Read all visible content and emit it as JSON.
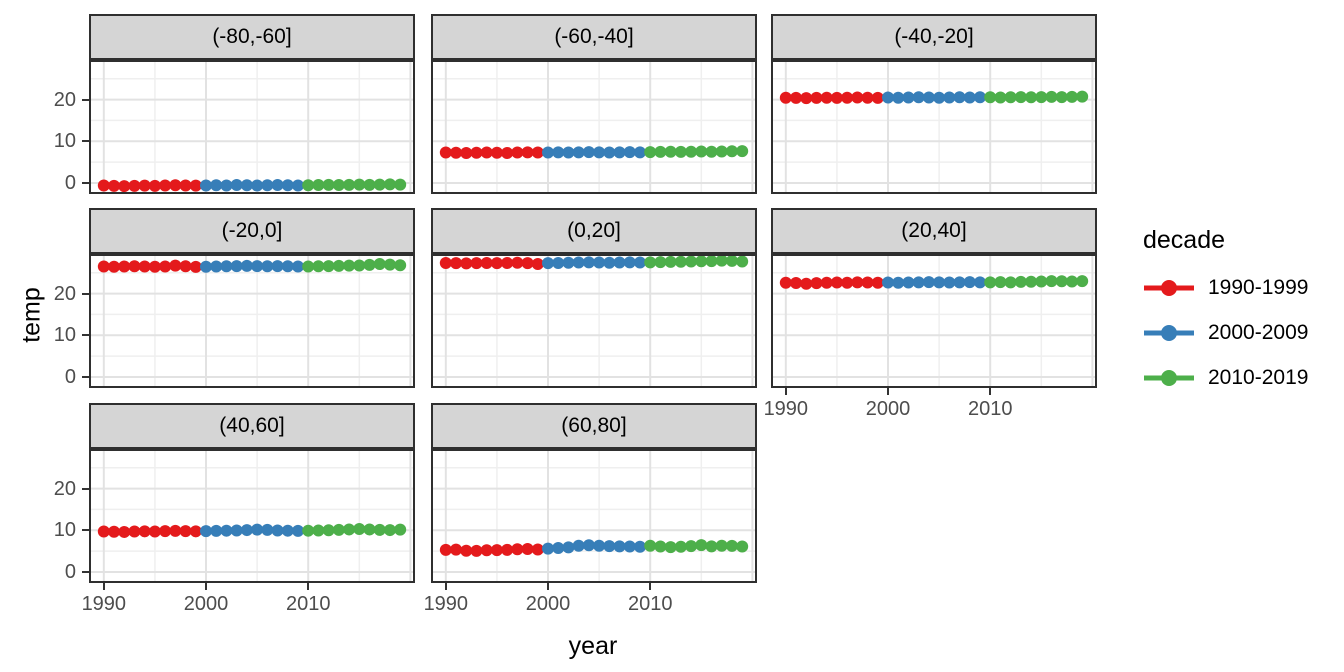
{
  "figure": {
    "xlabel": "year",
    "ylabel": "temp"
  },
  "legend": {
    "title": "decade",
    "entries": [
      {
        "label": "1990-1999",
        "color": "#E41A1C"
      },
      {
        "label": "2000-2009",
        "color": "#377EB8"
      },
      {
        "label": "2010-2019",
        "color": "#4DAF4A"
      }
    ]
  },
  "chart_data": {
    "type": "scatter",
    "title": "",
    "xlabel": "year",
    "ylabel": "temp",
    "legend_title": "decade",
    "legend_position": "right",
    "grid": true,
    "xlim": [
      1988.55,
      2020.45
    ],
    "ylim": [
      -2.65,
      29.5
    ],
    "x_ticks": [
      1990,
      2000,
      2010
    ],
    "y_ticks": [
      0,
      10,
      20
    ],
    "x_grid_major": [
      1990,
      2000,
      2010,
      2020
    ],
    "y_grid_major": [
      0,
      10,
      20
    ],
    "x_grid_minor": [
      1995,
      2005,
      2015
    ],
    "y_grid_minor": [
      5,
      15,
      25
    ],
    "x": [
      1990,
      1991,
      1992,
      1993,
      1994,
      1995,
      1996,
      1997,
      1998,
      1999,
      2000,
      2001,
      2002,
      2003,
      2004,
      2005,
      2006,
      2007,
      2008,
      2009,
      2010,
      2011,
      2012,
      2013,
      2014,
      2015,
      2016,
      2017,
      2018,
      2019
    ],
    "decades": [
      {
        "name": "1990-1999",
        "from": 1990,
        "to": 1999,
        "color": "#E41A1C"
      },
      {
        "name": "2000-2009",
        "from": 2000,
        "to": 2009,
        "color": "#377EB8"
      },
      {
        "name": "2010-2019",
        "from": 2010,
        "to": 2019,
        "color": "#4DAF4A"
      }
    ],
    "facets": [
      {
        "label": "(-80,-60]",
        "temps": [
          -0.6,
          -0.7,
          -0.75,
          -0.7,
          -0.65,
          -0.7,
          -0.6,
          -0.55,
          -0.6,
          -0.65,
          -0.6,
          -0.55,
          -0.6,
          -0.5,
          -0.55,
          -0.6,
          -0.55,
          -0.5,
          -0.55,
          -0.6,
          -0.55,
          -0.5,
          -0.45,
          -0.5,
          -0.45,
          -0.4,
          -0.45,
          -0.4,
          -0.35,
          -0.4
        ]
      },
      {
        "label": "(-60,-40]",
        "temps": [
          7.3,
          7.25,
          7.2,
          7.25,
          7.3,
          7.25,
          7.2,
          7.3,
          7.35,
          7.3,
          7.3,
          7.35,
          7.3,
          7.35,
          7.4,
          7.35,
          7.3,
          7.35,
          7.4,
          7.35,
          7.4,
          7.45,
          7.5,
          7.45,
          7.5,
          7.55,
          7.5,
          7.55,
          7.6,
          7.65
        ]
      },
      {
        "label": "(-40,-20]",
        "temps": [
          20.45,
          20.4,
          20.35,
          20.4,
          20.45,
          20.4,
          20.45,
          20.5,
          20.45,
          20.4,
          20.5,
          20.45,
          20.5,
          20.55,
          20.5,
          20.45,
          20.5,
          20.55,
          20.5,
          20.55,
          20.55,
          20.5,
          20.55,
          20.6,
          20.55,
          20.6,
          20.65,
          20.6,
          20.65,
          20.7
        ]
      },
      {
        "label": "(-20,0]",
        "temps": [
          26.5,
          26.45,
          26.5,
          26.55,
          26.5,
          26.45,
          26.5,
          26.7,
          26.55,
          26.4,
          26.45,
          26.5,
          26.55,
          26.6,
          26.65,
          26.6,
          26.55,
          26.6,
          26.55,
          26.5,
          26.5,
          26.55,
          26.6,
          26.65,
          26.7,
          26.75,
          26.9,
          27.1,
          26.95,
          26.8
        ]
      },
      {
        "label": "(0,20]",
        "temps": [
          27.35,
          27.3,
          27.25,
          27.3,
          27.35,
          27.3,
          27.35,
          27.4,
          27.3,
          27.1,
          27.3,
          27.35,
          27.4,
          27.45,
          27.5,
          27.45,
          27.4,
          27.45,
          27.5,
          27.45,
          27.5,
          27.55,
          27.6,
          27.65,
          27.7,
          27.75,
          27.8,
          27.9,
          27.85,
          27.7
        ]
      },
      {
        "label": "(20,40]",
        "temps": [
          22.6,
          22.55,
          22.35,
          22.5,
          22.6,
          22.65,
          22.6,
          22.7,
          22.65,
          22.6,
          22.65,
          22.6,
          22.65,
          22.7,
          22.75,
          22.7,
          22.65,
          22.7,
          22.75,
          22.7,
          22.7,
          22.75,
          22.7,
          22.8,
          22.85,
          22.9,
          23.0,
          22.95,
          22.9,
          23.0
        ]
      },
      {
        "label": "(40,60]",
        "temps": [
          9.7,
          9.65,
          9.6,
          9.7,
          9.75,
          9.7,
          9.8,
          9.85,
          9.8,
          9.75,
          9.8,
          9.85,
          9.9,
          9.95,
          10.05,
          10.15,
          10.1,
          9.95,
          9.9,
          9.85,
          9.9,
          9.95,
          10.0,
          10.1,
          10.2,
          10.3,
          10.2,
          10.1,
          10.05,
          10.15
        ]
      },
      {
        "label": "(60,80]",
        "temps": [
          5.3,
          5.35,
          5.1,
          5.05,
          5.2,
          5.25,
          5.3,
          5.45,
          5.5,
          5.4,
          5.6,
          5.75,
          5.9,
          6.3,
          6.4,
          6.3,
          6.2,
          6.15,
          6.1,
          6.05,
          6.3,
          6.1,
          5.95,
          6.05,
          6.2,
          6.45,
          6.15,
          6.3,
          6.25,
          6.1
        ]
      }
    ]
  }
}
